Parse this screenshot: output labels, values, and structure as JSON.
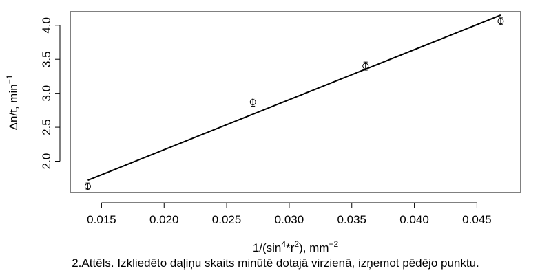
{
  "chart_data": {
    "type": "scatter",
    "xlabel": {
      "base": "1/(sin",
      "sup1": "4",
      "mid": "*r",
      "sup2": "2",
      "tail": "), mm",
      "sup3": "−2"
    },
    "ylabel": {
      "base": "Δn/t, min",
      "sup": "−1"
    },
    "xlim": [
      0.0125,
      0.0485
    ],
    "ylim": [
      1.54,
      4.2
    ],
    "x_ticks": [
      0.015,
      0.02,
      0.025,
      0.03,
      0.035,
      0.04,
      0.045
    ],
    "x_tick_labels": [
      "0.015",
      "0.020",
      "0.025",
      "0.030",
      "0.035",
      "0.040",
      "0.045"
    ],
    "y_ticks": [
      2.0,
      2.5,
      3.0,
      3.5,
      4.0
    ],
    "y_tick_labels": [
      "2.0",
      "2.5",
      "3.0",
      "3.5",
      "4.0"
    ],
    "points": [
      {
        "x": 0.0139,
        "y": 1.63,
        "err": 0.05
      },
      {
        "x": 0.0271,
        "y": 2.87,
        "err": 0.06
      },
      {
        "x": 0.0361,
        "y": 3.4,
        "err": 0.06
      },
      {
        "x": 0.0469,
        "y": 4.06,
        "err": 0.05
      }
    ],
    "fit_line": {
      "x": [
        0.0139,
        0.0469
      ],
      "y": [
        1.72,
        4.15
      ]
    },
    "grid": false,
    "legend": "none"
  },
  "caption": "2.Attēls. Izkliedēto daļiņu skaits minūtē dotajā virzienā, izņemot pēdējo punktu."
}
